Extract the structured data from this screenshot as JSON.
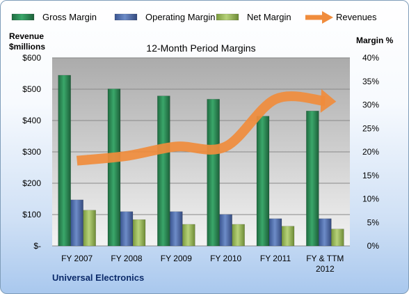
{
  "chart_data": {
    "type": "bar",
    "title": "12-Month Period Margins",
    "company": "Universal Electronics",
    "categories": [
      "FY 2007",
      "FY 2008",
      "FY 2009",
      "FY 2010",
      "FY 2011",
      "FY & TTM 2012"
    ],
    "left_axis": {
      "label_line1": "Revenue",
      "label_line2": "$millions",
      "ticks": [
        "$-",
        "$100",
        "$200",
        "$300",
        "$400",
        "$500",
        "$600"
      ],
      "range": [
        0,
        600
      ]
    },
    "right_axis": {
      "label": "Margin %",
      "ticks": [
        "0%",
        "5%",
        "10%",
        "15%",
        "20%",
        "25%",
        "30%",
        "35%",
        "40%"
      ],
      "range": [
        0,
        40
      ]
    },
    "series": [
      {
        "name": "Gross Margin",
        "type": "bar",
        "axis": "right",
        "color": "#2e8b57",
        "values": [
          36.3,
          33.4,
          31.9,
          31.2,
          27.6,
          28.7
        ]
      },
      {
        "name": "Operating Margin",
        "type": "bar",
        "axis": "right",
        "color": "#4f6fab",
        "values": [
          9.8,
          7.3,
          7.3,
          6.7,
          5.8,
          5.8
        ]
      },
      {
        "name": "Net Margin",
        "type": "bar",
        "axis": "right",
        "color": "#9bbb59",
        "values": [
          7.6,
          5.6,
          4.6,
          4.6,
          4.2,
          3.6
        ]
      },
      {
        "name": "Revenues",
        "type": "line",
        "axis": "left",
        "color": "#f08c3c",
        "values": [
          272,
          287,
          317,
          317,
          468,
          462
        ]
      }
    ],
    "grid": true,
    "legend_position": "top"
  }
}
